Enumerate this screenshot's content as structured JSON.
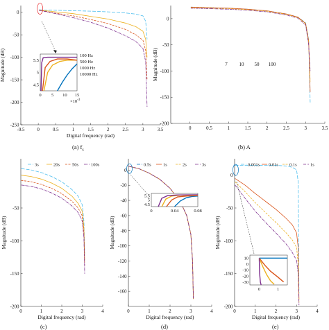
{
  "colors": {
    "blue": "#0072bd",
    "orange": "#d95319",
    "yellow": "#edb120",
    "purple": "#7e2f8e",
    "cyan": "#4dbeee",
    "annotation": "#e8262a"
  },
  "captions": {
    "a": "(a) f",
    "a_sub": "s",
    "b": "(b) A",
    "d": "(d) ",
    "e": "(e) ",
    "c": "(c) "
  },
  "chart_data": [
    {
      "id": "a",
      "type": "line",
      "xlabel": "Digital frequency (rad)",
      "ylabel": "Magnitude (dB)",
      "xlim": [
        -0.5,
        3.5
      ],
      "ylim": [
        -250,
        15
      ],
      "xticks": [
        -0.5,
        0,
        0.5,
        1,
        1.5,
        2,
        2.5,
        3,
        3.5
      ],
      "yticks": [
        0,
        -50,
        -100,
        -150,
        -200,
        -250
      ],
      "series": [
        {
          "name": "100 Hz",
          "color": "cyan",
          "x": [
            0.02,
            0.5,
            1.0,
            1.5,
            2.0,
            2.5,
            2.8,
            3.0,
            3.08,
            3.12
          ],
          "y": [
            5.5,
            4.5,
            3.5,
            2.5,
            1.0,
            -1.5,
            -4,
            -8,
            -20,
            -60
          ]
        },
        {
          "name": "500 Hz",
          "color": "yellow",
          "x": [
            0.02,
            0.5,
            1.0,
            1.5,
            2.0,
            2.5,
            2.8,
            3.0,
            3.08,
            3.12
          ],
          "y": [
            5.2,
            1.0,
            -3,
            -9,
            -15,
            -24,
            -32,
            -42,
            -60,
            -100
          ]
        },
        {
          "name": "1000 Hz",
          "color": "orange",
          "x": [
            0.02,
            0.5,
            1.0,
            1.5,
            2.0,
            2.5,
            2.8,
            3.0,
            3.08,
            3.12
          ],
          "y": [
            5.0,
            -2,
            -8,
            -16,
            -25,
            -38,
            -50,
            -62,
            -85,
            -150
          ]
        },
        {
          "name": "10000 Hz",
          "color": "purple",
          "x": [
            0.02,
            0.5,
            1.0,
            1.5,
            2.0,
            2.5,
            2.8,
            3.0,
            3.08,
            3.12
          ],
          "y": [
            4.5,
            -3,
            -12,
            -22,
            -35,
            -52,
            -65,
            -80,
            -110,
            -210
          ]
        }
      ],
      "inset": {
        "xlim": [
          0,
          15
        ],
        "ylim": [
          4.25,
          5.75
        ],
        "xticks": [
          0,
          5,
          10,
          15
        ],
        "yticks": [
          4.5,
          5,
          5.5
        ],
        "xscale_label": "×10",
        "xscale_exp": "-3",
        "series": [
          {
            "name": "100 Hz",
            "color": "blue",
            "x": [
              7,
              9,
              11,
              13,
              15
            ],
            "y": [
              4.25,
              4.6,
              4.9,
              5.15,
              5.35
            ]
          },
          {
            "name": "500 Hz",
            "color": "yellow",
            "x": [
              1.5,
              3,
              5,
              8,
              11,
              15
            ],
            "y": [
              4.25,
              5.0,
              5.3,
              5.45,
              5.5,
              5.5
            ]
          },
          {
            "name": "1000 Hz",
            "color": "orange",
            "x": [
              0.9,
              2,
              4,
              7,
              11,
              15
            ],
            "y": [
              4.25,
              5.2,
              5.45,
              5.55,
              5.55,
              5.5
            ]
          },
          {
            "name": "10000 Hz",
            "color": "purple",
            "x": [
              0.3,
              0.6,
              1.2,
              3,
              15
            ],
            "y": [
              4.25,
              5.4,
              5.6,
              5.62,
              5.62
            ]
          }
        ]
      }
    },
    {
      "id": "b",
      "type": "line",
      "xlabel": "",
      "ylabel": "Magnitude (dB)",
      "xlim": [
        -0.5,
        3.5
      ],
      "ylim": [
        -200,
        25
      ],
      "xticks": [
        0,
        0.5,
        1,
        1.5,
        2,
        2.5,
        3,
        3.5
      ],
      "yticks": [
        0,
        -50,
        -100,
        -150,
        -200
      ],
      "legend": [
        "7",
        "10",
        "50",
        "100"
      ],
      "series": [
        {
          "name": "7",
          "color": "cyan",
          "x": [
            0.02,
            0.5,
            1.0,
            1.5,
            2.0,
            2.5,
            2.8,
            3.0,
            3.08,
            3.12
          ],
          "y": [
            22,
            21,
            20,
            18,
            15,
            9,
            3,
            -8,
            -40,
            -160
          ]
        },
        {
          "name": "10",
          "color": "orange",
          "x": [
            0.02,
            0.5,
            1.0,
            1.5,
            2.0,
            2.5,
            2.8,
            3.0,
            3.08,
            3.12
          ],
          "y": [
            22,
            21,
            20,
            18,
            15,
            9,
            3,
            -9,
            -42,
            -140
          ]
        },
        {
          "name": "50",
          "color": "yellow",
          "x": [
            0.02,
            0.5,
            1.0,
            1.5,
            2.0,
            2.5,
            2.8,
            3.0,
            3.08,
            3.12
          ],
          "y": [
            21,
            20,
            19,
            17,
            14,
            8,
            2,
            -10,
            -45,
            -120
          ]
        },
        {
          "name": "100",
          "color": "purple",
          "x": [
            0.02,
            0.5,
            1.0,
            1.5,
            2.0,
            2.5,
            2.8,
            3.0,
            3.08,
            3.12
          ],
          "y": [
            20,
            19,
            18,
            16,
            13,
            7,
            1,
            -12,
            -50,
            -100
          ]
        }
      ]
    },
    {
      "id": "c",
      "type": "line",
      "xlabel": "Digital frequency (rad)",
      "ylabel": "Magnitude (dB)",
      "xlim": [
        0,
        4
      ],
      "ylim": [
        -200,
        25
      ],
      "xticks": [
        0,
        1,
        2,
        3,
        4
      ],
      "yticks": [
        -50,
        -100,
        -150,
        -200
      ],
      "series": [
        {
          "name": "3s",
          "color": "cyan",
          "x": [
            0.02,
            0.5,
            1.0,
            1.5,
            2.0,
            2.5,
            2.8,
            3.0,
            3.08,
            3.12
          ],
          "y": [
            10,
            8,
            4,
            -2,
            -10,
            -22,
            -32,
            -45,
            -70,
            -120
          ]
        },
        {
          "name": "20s",
          "color": "yellow",
          "x": [
            0.02,
            0.5,
            1.0,
            1.5,
            2.0,
            2.5,
            2.8,
            3.0,
            3.08,
            3.12
          ],
          "y": [
            0,
            -2,
            -6,
            -12,
            -20,
            -32,
            -43,
            -55,
            -80,
            -130
          ]
        },
        {
          "name": "50s",
          "color": "orange",
          "x": [
            0.02,
            0.5,
            1.0,
            1.5,
            2.0,
            2.5,
            2.8,
            3.0,
            3.08,
            3.12
          ],
          "y": [
            -8,
            -10,
            -14,
            -20,
            -28,
            -40,
            -50,
            -62,
            -88,
            -140
          ]
        },
        {
          "name": "100s",
          "color": "purple",
          "x": [
            0.02,
            0.5,
            1.0,
            1.5,
            2.0,
            2.5,
            2.8,
            3.0,
            3.08,
            3.12
          ],
          "y": [
            -15,
            -17,
            -21,
            -27,
            -35,
            -47,
            -57,
            -70,
            -95,
            -150
          ]
        }
      ]
    },
    {
      "id": "d",
      "type": "line",
      "xlabel": "Digital frequency (rad)",
      "ylabel": "Magnitude (dB)",
      "xlim": [
        0,
        4
      ],
      "ylim": [
        -180,
        15
      ],
      "xticks": [
        0,
        1,
        2,
        3,
        4
      ],
      "yticks": [
        0,
        -20,
        -40,
        -60,
        -80,
        -100,
        -120,
        -140,
        -160
      ],
      "series": [
        {
          "name": "0.5s",
          "color": "blue",
          "x": [
            0.02,
            0.5,
            1.0,
            1.5,
            2.0,
            2.5,
            2.8,
            3.0,
            3.08,
            3.12
          ],
          "y": [
            5,
            2,
            -4,
            -12,
            -24,
            -42,
            -60,
            -85,
            -120,
            -170
          ]
        },
        {
          "name": "1s",
          "color": "orange",
          "x": [
            0.02,
            0.5,
            1.0,
            1.5,
            2.0,
            2.5,
            2.8,
            3.0,
            3.08,
            3.12
          ],
          "y": [
            5,
            2,
            -4,
            -12,
            -24,
            -42,
            -60,
            -85,
            -120,
            -170
          ]
        },
        {
          "name": "2s",
          "color": "yellow",
          "x": [
            0.02,
            0.5,
            1.0,
            1.5,
            2.0,
            2.5,
            2.8,
            3.0,
            3.08,
            3.12
          ],
          "y": [
            5,
            2,
            -4,
            -12,
            -24,
            -42,
            -60,
            -85,
            -120,
            -170
          ]
        },
        {
          "name": "3s",
          "color": "purple",
          "x": [
            0.02,
            0.5,
            1.0,
            1.5,
            2.0,
            2.5,
            2.8,
            3.0,
            3.08,
            3.12
          ],
          "y": [
            5,
            2,
            -4,
            -12,
            -24,
            -42,
            -60,
            -85,
            -120,
            -170
          ]
        }
      ],
      "inset": {
        "xlim": [
          0,
          0.08
        ],
        "ylim": [
          4.25,
          5.75
        ],
        "xticks": [
          0,
          0.04,
          0.08
        ],
        "xtick_labels": [
          "0",
          "0.04",
          "0.08"
        ],
        "yticks": [
          4.5,
          5,
          5.5
        ],
        "series": [
          {
            "name": "0.5s",
            "color": "blue",
            "x": [
              0.04,
              0.05,
              0.06,
              0.07,
              0.08
            ],
            "y": [
              4.25,
              4.9,
              5.25,
              5.4,
              5.45
            ]
          },
          {
            "name": "1s",
            "color": "orange",
            "x": [
              0.026,
              0.035,
              0.045,
              0.06,
              0.08
            ],
            "y": [
              4.25,
              5.0,
              5.35,
              5.45,
              5.5
            ]
          },
          {
            "name": "2s",
            "color": "yellow",
            "x": [
              0.018,
              0.025,
              0.035,
              0.05,
              0.08
            ],
            "y": [
              4.25,
              5.1,
              5.45,
              5.55,
              5.55
            ]
          },
          {
            "name": "3s",
            "color": "purple",
            "x": [
              0.012,
              0.018,
              0.028,
              0.045,
              0.08
            ],
            "y": [
              4.25,
              5.2,
              5.5,
              5.58,
              5.6
            ]
          }
        ]
      }
    },
    {
      "id": "e",
      "type": "line",
      "xlabel": "Digital frequency (rad)",
      "ylabel": "Magnitude (dB)",
      "xlim": [
        0,
        4
      ],
      "ylim": [
        -200,
        25
      ],
      "xticks": [
        0,
        1,
        2,
        3,
        4
      ],
      "yticks": [
        0,
        -50,
        -100,
        -150,
        -200
      ],
      "series": [
        {
          "name": "0.001s",
          "color": "cyan",
          "x": [
            0.02,
            0.5,
            1.0,
            1.5,
            2.0,
            2.5,
            2.8,
            3.0,
            3.08,
            3.12
          ],
          "y": [
            15,
            15,
            15,
            15,
            15,
            14,
            12,
            8,
            -10,
            -180
          ]
        },
        {
          "name": "0.01s",
          "color": "orange",
          "x": [
            0.02,
            0.5,
            1.0,
            1.5,
            2.0,
            2.5,
            2.8,
            3.0,
            3.08,
            3.12
          ],
          "y": [
            -5,
            -15,
            -28,
            -40,
            -52,
            -66,
            -76,
            -88,
            -110,
            -190
          ]
        },
        {
          "name": "0.1s",
          "color": "yellow",
          "x": [
            0.02,
            0.5,
            1.0,
            1.5,
            2.0,
            2.5,
            2.8,
            3.0,
            3.08,
            3.12
          ],
          "y": [
            -10,
            -25,
            -42,
            -57,
            -72,
            -88,
            -99,
            -110,
            -135,
            -195
          ]
        },
        {
          "name": "1s",
          "color": "purple",
          "x": [
            0.02,
            0.5,
            1.0,
            1.5,
            2.0,
            2.5,
            2.8,
            3.0,
            3.08,
            3.12
          ],
          "y": [
            -15,
            -35,
            -55,
            -72,
            -88,
            -105,
            -118,
            -130,
            -150,
            -198
          ]
        }
      ],
      "inset": {
        "xlim": [
          -0.5,
          1.5
        ],
        "ylim": [
          -35,
          15
        ],
        "xticks": [
          0,
          1
        ],
        "yticks": [
          10,
          0,
          -10,
          -20,
          -30
        ],
        "series": [
          {
            "name": "0.001s",
            "color": "blue",
            "x": [
              0.0,
              0.5,
              1.0,
              1.5
            ],
            "y": [
              10,
              10,
              10,
              10
            ]
          },
          {
            "name": "0.01s",
            "color": "orange",
            "x": [
              0.0,
              0.3,
              0.6,
              1.0,
              1.3
            ],
            "y": [
              10,
              -2,
              -12,
              -22,
              -30
            ]
          },
          {
            "name": "0.1s",
            "color": "yellow",
            "x": [
              0.0,
              0.2,
              0.4,
              0.6,
              0.8
            ],
            "y": [
              10,
              -5,
              -18,
              -28,
              -34
            ]
          },
          {
            "name": "1s",
            "color": "purple",
            "x": [
              0.0,
              0.02,
              0.06,
              0.1
            ],
            "y": [
              10,
              -15,
              -30,
              -35
            ]
          }
        ]
      }
    }
  ]
}
